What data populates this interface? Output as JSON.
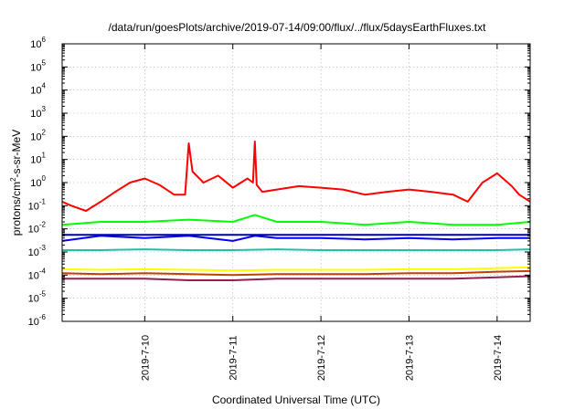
{
  "chart_data": {
    "type": "line",
    "title": "/data/run/goesPlots/archive/2019-07-14/09:00/flux/../flux/5daysEarthFluxes.txt",
    "xlabel": "Coordinated Universal Time (UTC)",
    "ylabel_parts": {
      "pre": "protons/cm",
      "sup": "2",
      "post": "-s-sr-MeV"
    },
    "x_range": [
      "2019-07-09T01:30",
      "2019-07-14T09:00"
    ],
    "x_ticks": [
      "2019-7-10",
      "2019-7-11",
      "2019-7-12",
      "2019-7-13",
      "2019-7-14"
    ],
    "y_scale": "log",
    "ylim": [
      1e-06,
      1000000.0
    ],
    "y_ticks": [
      {
        "base": "10",
        "exp": "-6"
      },
      {
        "base": "10",
        "exp": "-5"
      },
      {
        "base": "10",
        "exp": "-4"
      },
      {
        "base": "10",
        "exp": "-3"
      },
      {
        "base": "10",
        "exp": "-2"
      },
      {
        "base": "10",
        "exp": "-1"
      },
      {
        "base": "10",
        "exp": "0"
      },
      {
        "base": "10",
        "exp": "1"
      },
      {
        "base": "10",
        "exp": "2"
      },
      {
        "base": "10",
        "exp": "3"
      },
      {
        "base": "10",
        "exp": "4"
      },
      {
        "base": "10",
        "exp": "5"
      },
      {
        "base": "10",
        "exp": "6"
      }
    ],
    "grid": true,
    "series": [
      {
        "color": "#ff0000",
        "x": [
          "2019-07-09T01:30",
          "2019-07-09T04:00",
          "2019-07-09T08:00",
          "2019-07-09T12:00",
          "2019-07-09T16:00",
          "2019-07-09T20:00",
          "2019-07-10T00:00",
          "2019-07-10T04:00",
          "2019-07-10T08:00",
          "2019-07-10T11:00",
          "2019-07-10T12:00",
          "2019-07-10T13:00",
          "2019-07-10T16:00",
          "2019-07-10T20:00",
          "2019-07-11T00:00",
          "2019-07-11T04:00",
          "2019-07-11T05:30",
          "2019-07-11T06:00",
          "2019-07-11T06:30",
          "2019-07-11T08:00",
          "2019-07-11T12:00",
          "2019-07-11T18:00",
          "2019-07-12T00:00",
          "2019-07-12T06:00",
          "2019-07-12T12:00",
          "2019-07-12T18:00",
          "2019-07-13T00:00",
          "2019-07-13T06:00",
          "2019-07-13T12:00",
          "2019-07-13T16:00",
          "2019-07-13T20:00",
          "2019-07-14T00:00",
          "2019-07-14T04:00",
          "2019-07-14T06:00",
          "2019-07-14T09:00"
        ],
        "y": [
          0.15,
          0.1,
          0.06,
          0.15,
          0.4,
          1.0,
          1.5,
          0.8,
          0.3,
          0.3,
          50,
          3,
          1.0,
          2,
          0.6,
          1.5,
          1.0,
          60,
          0.8,
          0.4,
          0.5,
          0.7,
          0.6,
          0.5,
          0.3,
          0.4,
          0.5,
          0.4,
          0.3,
          0.15,
          1.0,
          2.5,
          0.7,
          0.3,
          0.15
        ]
      },
      {
        "color": "#00ff00",
        "x": [
          "2019-07-09T01:30",
          "2019-07-09T12:00",
          "2019-07-10T00:00",
          "2019-07-10T12:00",
          "2019-07-11T00:00",
          "2019-07-11T06:00",
          "2019-07-11T12:00",
          "2019-07-12T00:00",
          "2019-07-12T12:00",
          "2019-07-13T00:00",
          "2019-07-13T12:00",
          "2019-07-14T00:00",
          "2019-07-14T09:00"
        ],
        "y": [
          0.015,
          0.02,
          0.02,
          0.025,
          0.02,
          0.04,
          0.02,
          0.02,
          0.015,
          0.02,
          0.015,
          0.015,
          0.02
        ]
      },
      {
        "color": "#0000ff",
        "x": [
          "2019-07-09T01:30",
          "2019-07-09T12:00",
          "2019-07-10T00:00",
          "2019-07-10T12:00",
          "2019-07-11T00:00",
          "2019-07-11T06:00",
          "2019-07-11T12:00",
          "2019-07-12T00:00",
          "2019-07-12T12:00",
          "2019-07-13T00:00",
          "2019-07-13T12:00",
          "2019-07-14T00:00",
          "2019-07-14T09:00"
        ],
        "y": [
          0.003,
          0.005,
          0.004,
          0.005,
          0.003,
          0.005,
          0.004,
          0.004,
          0.0035,
          0.004,
          0.0035,
          0.004,
          0.004
        ]
      },
      {
        "color": "#0000a0",
        "x": [
          "2019-07-09T01:30",
          "2019-07-14T09:00"
        ],
        "y": [
          0.0055,
          0.0055
        ]
      },
      {
        "color": "#20c0a0",
        "x": [
          "2019-07-09T01:30",
          "2019-07-09T12:00",
          "2019-07-10T00:00",
          "2019-07-10T12:00",
          "2019-07-11T00:00",
          "2019-07-11T12:00",
          "2019-07-12T00:00",
          "2019-07-12T12:00",
          "2019-07-13T00:00",
          "2019-07-13T12:00",
          "2019-07-14T00:00",
          "2019-07-14T09:00"
        ],
        "y": [
          0.0012,
          0.0012,
          0.0013,
          0.0012,
          0.0012,
          0.0013,
          0.0012,
          0.0012,
          0.0012,
          0.0012,
          0.0012,
          0.0013
        ]
      },
      {
        "color": "#ffff00",
        "x": [
          "2019-07-09T01:30",
          "2019-07-09T12:00",
          "2019-07-10T00:00",
          "2019-07-10T12:00",
          "2019-07-11T00:00",
          "2019-07-11T12:00",
          "2019-07-12T00:00",
          "2019-07-12T12:00",
          "2019-07-13T00:00",
          "2019-07-13T12:00",
          "2019-07-14T00:00",
          "2019-07-14T09:00"
        ],
        "y": [
          0.00018,
          0.00017,
          0.00018,
          0.00017,
          0.00016,
          0.00017,
          0.00017,
          0.00017,
          0.00018,
          0.00018,
          0.0002,
          0.00022
        ]
      },
      {
        "color": "#c04000",
        "x": [
          "2019-07-09T01:30",
          "2019-07-09T12:00",
          "2019-07-10T00:00",
          "2019-07-10T12:00",
          "2019-07-11T00:00",
          "2019-07-11T12:00",
          "2019-07-12T00:00",
          "2019-07-12T12:00",
          "2019-07-13T00:00",
          "2019-07-13T12:00",
          "2019-07-14T00:00",
          "2019-07-14T09:00"
        ],
        "y": [
          0.00012,
          0.00011,
          0.00012,
          0.00011,
          0.0001,
          0.00011,
          0.00011,
          0.00011,
          0.00012,
          0.00012,
          0.00014,
          0.00015
        ]
      },
      {
        "color": "#902050",
        "x": [
          "2019-07-09T01:30",
          "2019-07-09T12:00",
          "2019-07-10T00:00",
          "2019-07-10T12:00",
          "2019-07-11T00:00",
          "2019-07-11T12:00",
          "2019-07-12T00:00",
          "2019-07-12T12:00",
          "2019-07-13T00:00",
          "2019-07-13T12:00",
          "2019-07-14T00:00",
          "2019-07-14T09:00"
        ],
        "y": [
          7e-05,
          7e-05,
          7e-05,
          6e-05,
          6e-05,
          7e-05,
          7e-05,
          7e-05,
          7e-05,
          7e-05,
          8e-05,
          9e-05
        ]
      }
    ]
  }
}
